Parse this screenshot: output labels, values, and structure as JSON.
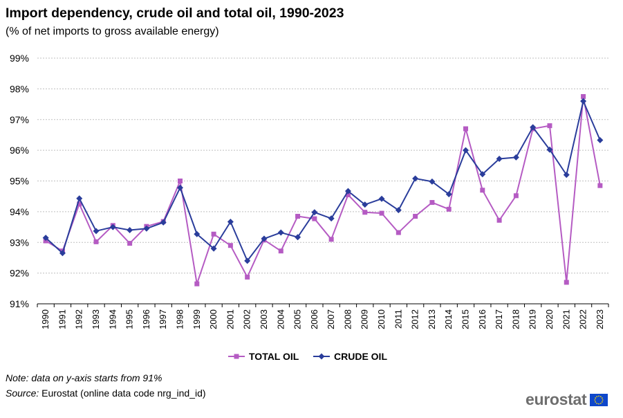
{
  "title": "Import dependency, crude oil and total oil, 1990-2023",
  "subtitle": "(% of net imports to gross available energy)",
  "note": "Note: data on y-axis starts from 91%",
  "source_label": "Source:",
  "source_text": " Eurostat (online data code nrg_ind_id)",
  "logo_text": "eurostat",
  "colors": {
    "total_oil": "#b55bc3",
    "crude_oil": "#2a3d9b",
    "grid": "#bfbfbf",
    "flag": "#0e47cb",
    "stars": "#ffdd00"
  },
  "chart_data": {
    "type": "line",
    "categories": [
      "1990",
      "1991",
      "1992",
      "1993",
      "1994",
      "1995",
      "1996",
      "1997",
      "1998",
      "1999",
      "2000",
      "2001",
      "2002",
      "2003",
      "2004",
      "2005",
      "2006",
      "2007",
      "2008",
      "2009",
      "2010",
      "2011",
      "2012",
      "2013",
      "2014",
      "2015",
      "2016",
      "2017",
      "2018",
      "2019",
      "2020",
      "2021",
      "2022",
      "2023"
    ],
    "series": [
      {
        "name": "TOTAL OIL",
        "marker": "square",
        "values": [
          93.05,
          92.72,
          94.25,
          93.02,
          93.55,
          92.97,
          93.52,
          93.68,
          95.0,
          91.65,
          93.27,
          92.9,
          91.87,
          93.08,
          92.72,
          93.85,
          93.77,
          93.1,
          94.55,
          93.98,
          93.95,
          93.32,
          93.85,
          94.3,
          94.08,
          96.7,
          94.7,
          93.72,
          94.52,
          96.7,
          96.8,
          91.7,
          97.75,
          94.85
        ]
      },
      {
        "name": "CRUDE OIL",
        "marker": "diamond",
        "values": [
          93.15,
          92.65,
          94.43,
          93.37,
          93.5,
          93.4,
          93.45,
          93.65,
          94.78,
          93.27,
          92.8,
          93.67,
          92.4,
          93.12,
          93.32,
          93.17,
          93.98,
          93.78,
          94.67,
          94.23,
          94.42,
          94.05,
          95.08,
          94.98,
          94.57,
          96.0,
          95.22,
          95.72,
          95.77,
          96.75,
          96.02,
          95.2,
          97.6,
          96.33
        ]
      }
    ],
    "ylim": [
      91,
      99
    ],
    "yticks": [
      "91%",
      "92%",
      "93%",
      "94%",
      "95%",
      "96%",
      "97%",
      "98%",
      "99%"
    ],
    "grid": true,
    "legend_position": "bottom-center"
  }
}
